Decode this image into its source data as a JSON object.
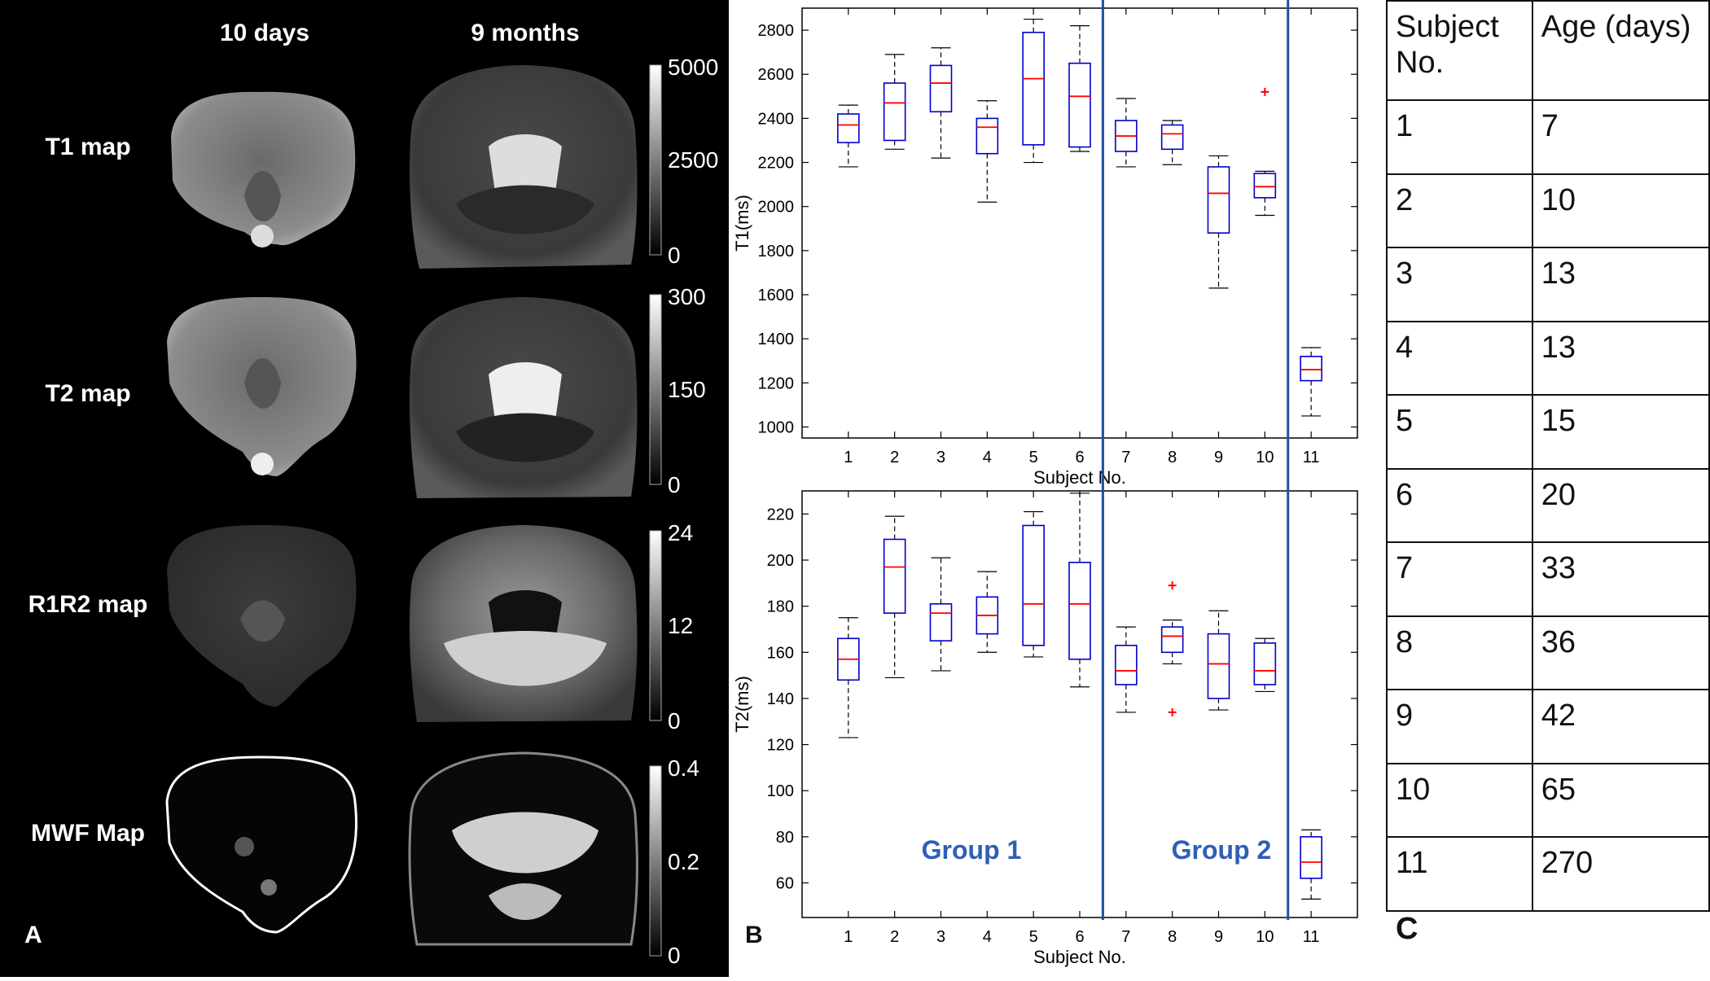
{
  "panel_a": {
    "letter": "A",
    "col_headers": [
      "10 days",
      "9 months"
    ],
    "row_labels": [
      "T1 map",
      "T2 map",
      "R1R2 map",
      "MWF Map"
    ],
    "colorbars": [
      {
        "ticks": [
          "5000",
          "2500",
          "0"
        ]
      },
      {
        "ticks": [
          "300",
          "150",
          "0"
        ]
      },
      {
        "ticks": [
          "24",
          "12",
          "0"
        ]
      },
      {
        "ticks": [
          "0.4",
          "0.2",
          "0"
        ]
      }
    ]
  },
  "panel_b": {
    "letter": "B"
  },
  "chart_data": [
    {
      "type": "box",
      "title": "",
      "xlabel": "Subject No.",
      "ylabel": "T1(ms)",
      "ylim": [
        950,
        2900
      ],
      "yticks": [
        1000,
        1200,
        1400,
        1600,
        1800,
        2000,
        2200,
        2400,
        2600,
        2800
      ],
      "categories": [
        "1",
        "2",
        "3",
        "4",
        "5",
        "6",
        "7",
        "8",
        "9",
        "10",
        "11"
      ],
      "boxes": [
        {
          "whisker_low": 2180,
          "q1": 2290,
          "median": 2370,
          "q3": 2420,
          "whisker_high": 2460,
          "outliers": []
        },
        {
          "whisker_low": 2260,
          "q1": 2300,
          "median": 2470,
          "q3": 2560,
          "whisker_high": 2690,
          "outliers": []
        },
        {
          "whisker_low": 2220,
          "q1": 2430,
          "median": 2560,
          "q3": 2640,
          "whisker_high": 2720,
          "outliers": []
        },
        {
          "whisker_low": 2020,
          "q1": 2240,
          "median": 2360,
          "q3": 2400,
          "whisker_high": 2480,
          "outliers": []
        },
        {
          "whisker_low": 2200,
          "q1": 2280,
          "median": 2580,
          "q3": 2790,
          "whisker_high": 2850,
          "outliers": []
        },
        {
          "whisker_low": 2250,
          "q1": 2270,
          "median": 2500,
          "q3": 2650,
          "whisker_high": 2820,
          "outliers": []
        },
        {
          "whisker_low": 2180,
          "q1": 2250,
          "median": 2320,
          "q3": 2390,
          "whisker_high": 2490,
          "outliers": []
        },
        {
          "whisker_low": 2190,
          "q1": 2260,
          "median": 2330,
          "q3": 2370,
          "whisker_high": 2390,
          "outliers": []
        },
        {
          "whisker_low": 1630,
          "q1": 1880,
          "median": 2060,
          "q3": 2180,
          "whisker_high": 2230,
          "outliers": []
        },
        {
          "whisker_low": 1960,
          "q1": 2040,
          "median": 2090,
          "q3": 2150,
          "whisker_high": 2160,
          "outliers": [
            2520
          ]
        },
        {
          "whisker_low": 1050,
          "q1": 1210,
          "median": 1260,
          "q3": 1320,
          "whisker_high": 1360,
          "outliers": []
        }
      ]
    },
    {
      "type": "box",
      "title": "",
      "xlabel": "Subject No.",
      "ylabel": "T2(ms)",
      "ylim": [
        45,
        230
      ],
      "yticks": [
        60,
        80,
        100,
        120,
        140,
        160,
        180,
        200,
        220
      ],
      "categories": [
        "1",
        "2",
        "3",
        "4",
        "5",
        "6",
        "7",
        "8",
        "9",
        "10",
        "11"
      ],
      "boxes": [
        {
          "whisker_low": 123,
          "q1": 148,
          "median": 157,
          "q3": 166,
          "whisker_high": 175,
          "outliers": []
        },
        {
          "whisker_low": 149,
          "q1": 177,
          "median": 197,
          "q3": 209,
          "whisker_high": 219,
          "outliers": []
        },
        {
          "whisker_low": 152,
          "q1": 165,
          "median": 177,
          "q3": 181,
          "whisker_high": 201,
          "outliers": []
        },
        {
          "whisker_low": 160,
          "q1": 168,
          "median": 176,
          "q3": 184,
          "whisker_high": 195,
          "outliers": []
        },
        {
          "whisker_low": 158,
          "q1": 163,
          "median": 181,
          "q3": 215,
          "whisker_high": 221,
          "outliers": []
        },
        {
          "whisker_low": 145,
          "q1": 157,
          "median": 181,
          "q3": 199,
          "whisker_high": 229,
          "outliers": []
        },
        {
          "whisker_low": 134,
          "q1": 146,
          "median": 152,
          "q3": 163,
          "whisker_high": 171,
          "outliers": []
        },
        {
          "whisker_low": 155,
          "q1": 160,
          "median": 167,
          "q3": 171,
          "whisker_high": 174,
          "outliers": [
            189,
            134
          ]
        },
        {
          "whisker_low": 135,
          "q1": 140,
          "median": 155,
          "q3": 168,
          "whisker_high": 178,
          "outliers": []
        },
        {
          "whisker_low": 143,
          "q1": 146,
          "median": 152,
          "q3": 164,
          "whisker_high": 166,
          "outliers": []
        },
        {
          "whisker_low": 53,
          "q1": 62,
          "median": 69,
          "q3": 80,
          "whisker_high": 83,
          "outliers": []
        }
      ],
      "annotations": [
        "Group 1",
        "Group 2"
      ]
    }
  ],
  "group_dividers_after": [
    6,
    10
  ],
  "colors": {
    "box": "#0000cc",
    "median": "#ff0000",
    "outlier": "#ff0000",
    "divider": "#1f4fa0",
    "group_text": "#2e5fb5"
  },
  "panel_c": {
    "letter": "C",
    "headers": [
      "Subject No.",
      "Age (days)"
    ],
    "rows": [
      [
        "1",
        "7"
      ],
      [
        "2",
        "10"
      ],
      [
        "3",
        "13"
      ],
      [
        "4",
        "13"
      ],
      [
        "5",
        "15"
      ],
      [
        "6",
        "20"
      ],
      [
        "7",
        "33"
      ],
      [
        "8",
        "36"
      ],
      [
        "9",
        "42"
      ],
      [
        "10",
        "65"
      ],
      [
        "11",
        "270"
      ]
    ]
  }
}
